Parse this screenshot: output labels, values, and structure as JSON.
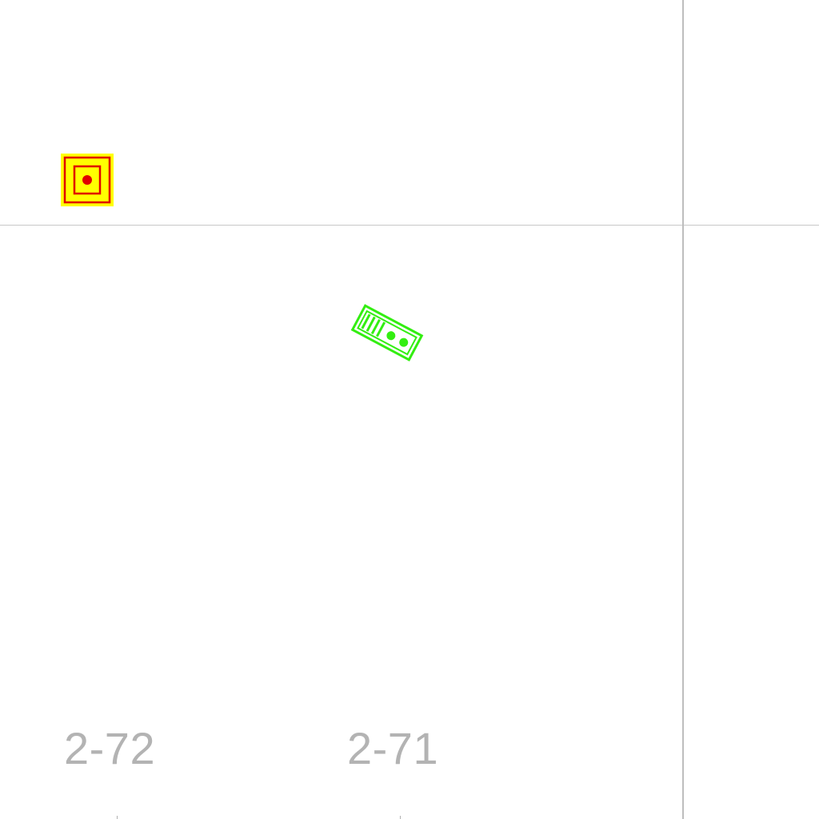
{
  "rooms": [
    {
      "id": "2-72",
      "label": "2-72"
    },
    {
      "id": "2-71",
      "label": "2-71"
    }
  ],
  "symbols": {
    "alarm": {
      "icon": "alarm-device-icon",
      "fill_color": "#ffff00",
      "stroke_color": "#e00000"
    },
    "panel": {
      "icon": "control-panel-icon",
      "stroke_color": "#33ee11"
    }
  },
  "colors": {
    "background": "#ffffff",
    "wall_lines": "#c0c0c0",
    "room_label": "#b3b3b3"
  }
}
